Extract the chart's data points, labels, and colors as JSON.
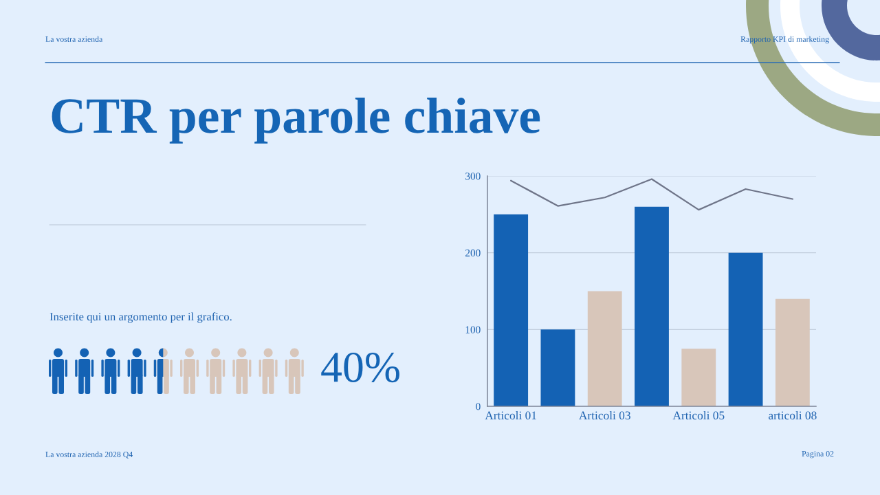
{
  "chart_data": {
    "type": "bar",
    "title": "CTR per parole chiave",
    "subtitle": "Inserite qui un argomento per il grafico.",
    "categories": [
      "Articoli 01",
      null,
      "Articoli 03",
      null,
      "Articoli 05",
      null,
      "articoli 08"
    ],
    "series": [
      {
        "colors": [
          "#1462b4",
          "#1462b4",
          "#d8c6ba",
          "#1462b4",
          "#d8c6ba",
          "#1462b4",
          "#d8c6ba"
        ],
        "values": [
          250,
          100,
          150,
          260,
          75,
          200,
          140
        ]
      },
      {
        "type": "line",
        "color": "#6f7589",
        "values": [
          294,
          261,
          272,
          296,
          256,
          283,
          270
        ]
      }
    ],
    "ylim": [
      0,
      300
    ],
    "yticks": [
      0,
      100,
      200,
      300
    ],
    "grid": "y",
    "annotations": [
      "La vostra azienda",
      "Rapporto KPI di marketing",
      "40%",
      "La vostra azienda 2028 Q4",
      "Pagina 02"
    ]
  }
}
